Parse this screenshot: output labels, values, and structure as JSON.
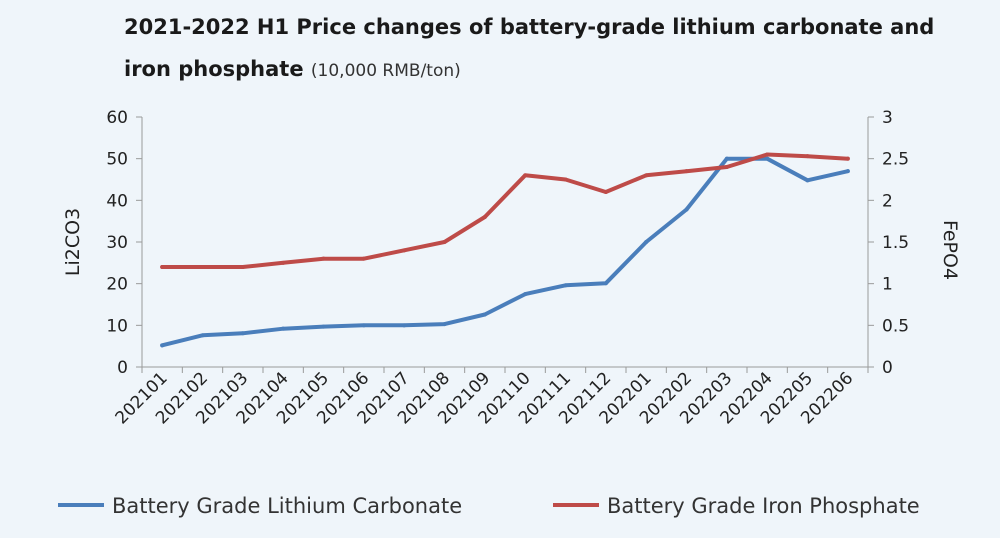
{
  "chart_data": {
    "type": "line",
    "title": "2021-2022 H1 Price changes of battery-grade lithium carbonate and iron phosphate",
    "unit": "(10,000 RMB/ton)",
    "categories": [
      "202101",
      "202102",
      "202103",
      "202104",
      "202105",
      "202106",
      "202107",
      "202108",
      "202109",
      "202110",
      "202111",
      "202112",
      "202201",
      "202202",
      "202203",
      "202204",
      "202205",
      "202206"
    ],
    "ylabel_left": "Li2CO3",
    "ylabel_right": "FePO4",
    "ylim_left": [
      0,
      60
    ],
    "yticks_left": [
      "0",
      "10",
      "20",
      "30",
      "40",
      "50",
      "60"
    ],
    "ylim_right": [
      0,
      3
    ],
    "yticks_right": [
      "0",
      "0.5",
      "1",
      "1.5",
      "2",
      "2.5",
      "3"
    ],
    "grid": false,
    "legend_position": "bottom",
    "series": [
      {
        "name": "Battery Grade Lithium Carbonate",
        "axis": "left",
        "color": "#4a7ebb",
        "values": [
          5.2,
          7.6,
          8.1,
          9.2,
          9.7,
          10.0,
          10.0,
          10.3,
          12.6,
          17.5,
          19.6,
          20.1,
          30.0,
          37.8,
          50.0,
          50.0,
          44.8,
          47.0
        ]
      },
      {
        "name": "Battery Grade Iron Phosphate",
        "axis": "right",
        "color": "#be4b48",
        "values": [
          1.2,
          1.2,
          1.2,
          1.25,
          1.3,
          1.3,
          1.4,
          1.5,
          1.8,
          2.3,
          2.25,
          2.1,
          2.3,
          2.35,
          2.4,
          2.55,
          2.53,
          2.5
        ]
      }
    ]
  }
}
